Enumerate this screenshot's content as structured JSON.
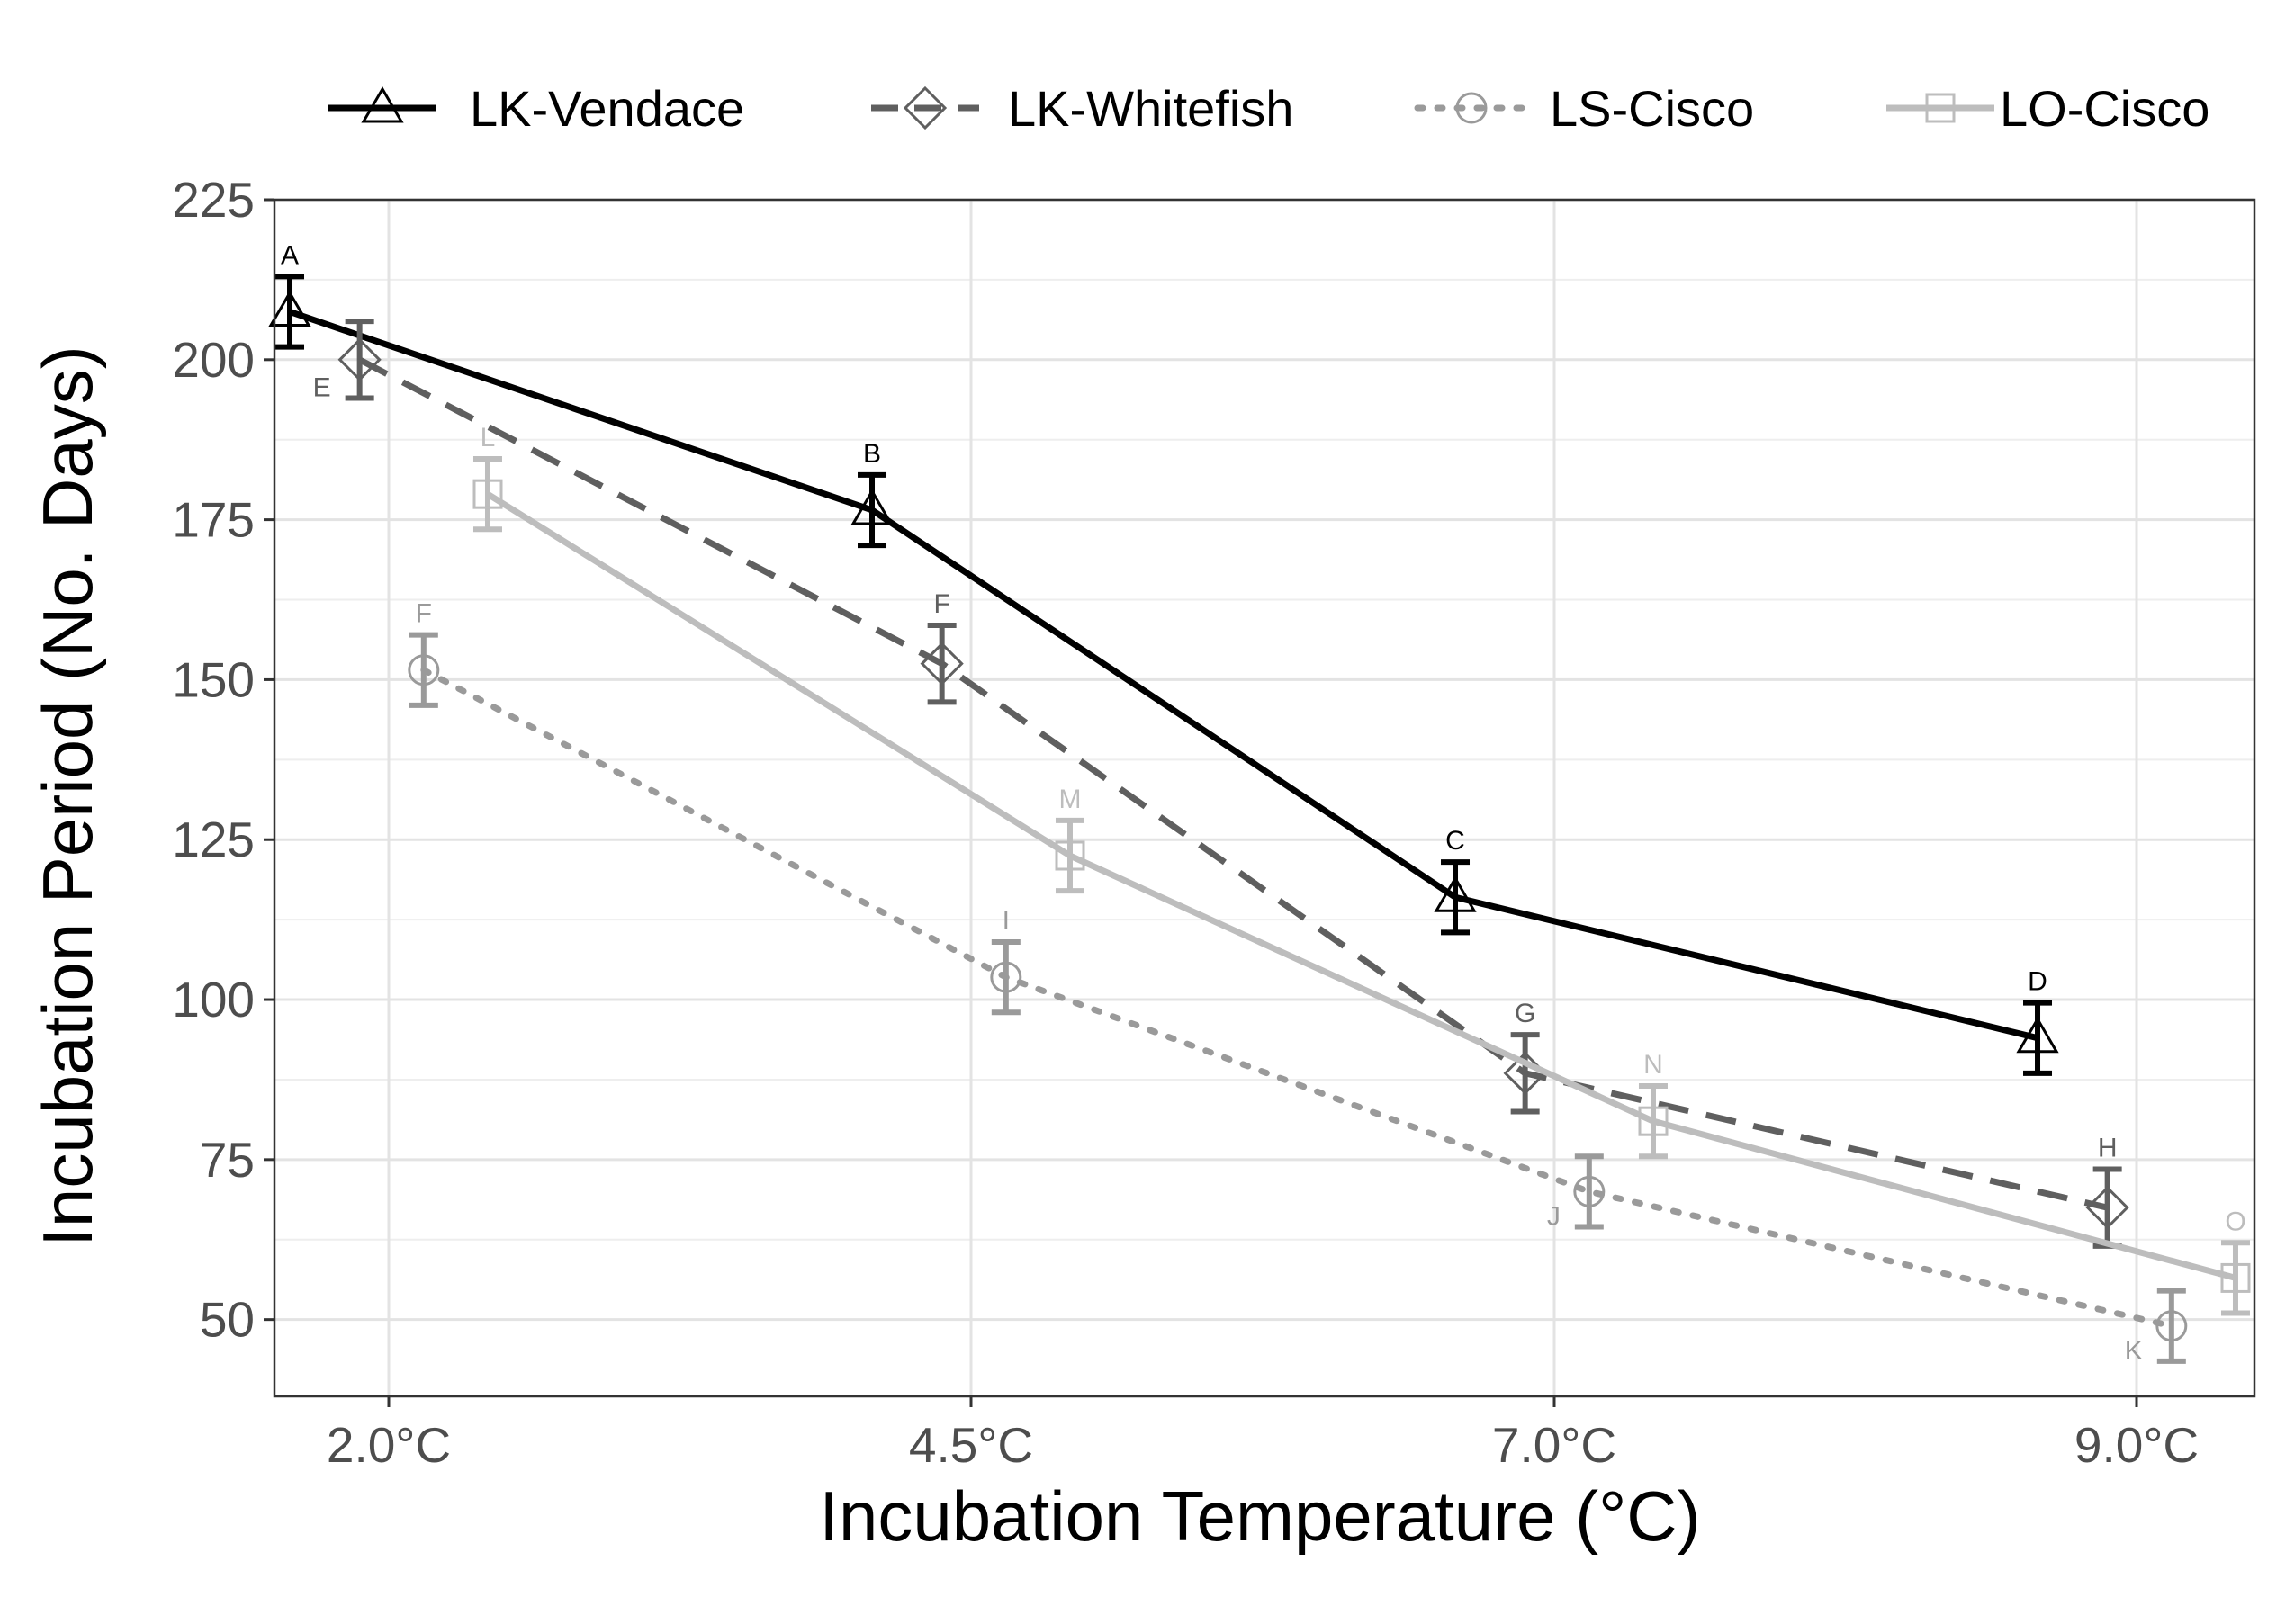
{
  "chart_data": {
    "type": "line",
    "title": "",
    "xlabel": "Incubation Temperature (°C)",
    "ylabel": "Incubation Period (No. Days)",
    "categories": [
      "2.0°C",
      "4.5°C",
      "7.0°C",
      "9.0°C"
    ],
    "x_numeric": [
      2.0,
      4.5,
      7.0,
      9.0
    ],
    "ylim": [
      38,
      225
    ],
    "yticks": [
      50,
      75,
      100,
      125,
      150,
      175,
      200,
      225
    ],
    "grid": true,
    "legend_position": "top",
    "series": [
      {
        "name": "LK-Vendace",
        "marker": "triangle",
        "line_style": "solid",
        "color": "#000000",
        "values": [
          207.5,
          176.5,
          116,
          94
        ],
        "errors": [
          5.5,
          5.5,
          5.5,
          5.5
        ],
        "x_offset": -0.17,
        "labels": [
          "A",
          "B",
          "C",
          "D"
        ],
        "label_pos": [
          "above",
          "above",
          "above",
          "above"
        ]
      },
      {
        "name": "LK-Whitefish",
        "marker": "diamond",
        "line_style": "dashed",
        "color": "#5f5f5f",
        "values": [
          200,
          152.5,
          88.5,
          67.5
        ],
        "errors": [
          6,
          6,
          6,
          6
        ],
        "x_offset": -0.05,
        "labels": [
          "E",
          "F",
          "G",
          "H"
        ],
        "label_pos": [
          "below-left",
          "above",
          "above",
          "above"
        ]
      },
      {
        "name": "LS-Cisco",
        "marker": "circle",
        "line_style": "dotted",
        "color": "#9a9a9a",
        "values": [
          151.5,
          103.5,
          70,
          49
        ],
        "errors": [
          5.5,
          5.5,
          5.5,
          5.5
        ],
        "x_offset": 0.06,
        "labels": [
          "F",
          "I",
          "J",
          "K"
        ],
        "label_pos": [
          "above",
          "above",
          "below-left",
          "below-left"
        ]
      },
      {
        "name": "LO-Cisco",
        "marker": "square",
        "line_style": "solid",
        "color": "#bdbdbd",
        "values": [
          179,
          122.5,
          81,
          56.5
        ],
        "errors": [
          5.5,
          5.5,
          5.5,
          5.5
        ],
        "x_offset": 0.17,
        "labels": [
          "L",
          "M",
          "N",
          "O"
        ],
        "label_pos": [
          "above",
          "above",
          "above",
          "above"
        ]
      }
    ]
  }
}
